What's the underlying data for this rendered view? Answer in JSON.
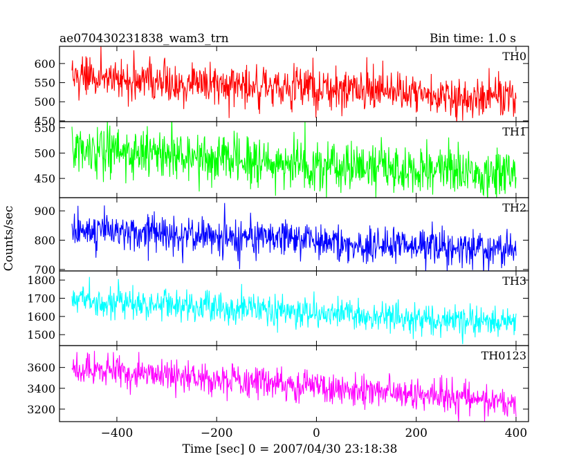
{
  "header": {
    "title": "ae070430231838_wam3_trn",
    "bin_time": "Bin time: 1.0 s"
  },
  "axes": {
    "xlabel": "Time [sec] 0 = 2007/04/30 23:18:38",
    "ylabel": "Counts/sec",
    "xlim": [
      -515,
      425
    ],
    "xticks": [
      -400,
      -200,
      0,
      200,
      400
    ],
    "xtick_labels": [
      "−400",
      "−200",
      "0",
      "200",
      "400"
    ]
  },
  "chart_data": {
    "type": "line",
    "x_range": [
      -490,
      400
    ],
    "bin_seconds": 1.0,
    "panels": [
      {
        "name": "TH0",
        "color": "#ff0000",
        "ylim": [
          448,
          645
        ],
        "yticks": [
          450,
          500,
          550,
          600
        ],
        "tick_labels": [
          "450",
          "500",
          "550",
          "600"
        ],
        "start_mean": 565,
        "end_mean": 508,
        "noise_sd": 28
      },
      {
        "name": "TH1",
        "color": "#00ff00",
        "ylim": [
          412,
          562
        ],
        "yticks": [
          450,
          500,
          550
        ],
        "tick_labels": [
          "450",
          "500",
          "550"
        ],
        "start_mean": 505,
        "end_mean": 455,
        "noise_sd": 24
      },
      {
        "name": "TH2",
        "color": "#0000ff",
        "ylim": [
          695,
          945
        ],
        "yticks": [
          700,
          800,
          900
        ],
        "tick_labels": [
          "700",
          "800",
          "900"
        ],
        "start_mean": 840,
        "end_mean": 760,
        "noise_sd": 32
      },
      {
        "name": "TH3",
        "color": "#00ffff",
        "ylim": [
          1440,
          1850
        ],
        "yticks": [
          1500,
          1600,
          1700,
          1800
        ],
        "tick_labels": [
          "1500",
          "1600",
          "1700",
          "1800"
        ],
        "start_mean": 1695,
        "end_mean": 1560,
        "noise_sd": 42
      },
      {
        "name": "TH0123",
        "color": "#ff00ff",
        "ylim": [
          3080,
          3810
        ],
        "yticks": [
          3200,
          3400,
          3600
        ],
        "tick_labels": [
          "3200",
          "3400",
          "3600"
        ],
        "start_mean": 3600,
        "end_mean": 3260,
        "noise_sd": 75
      }
    ]
  }
}
